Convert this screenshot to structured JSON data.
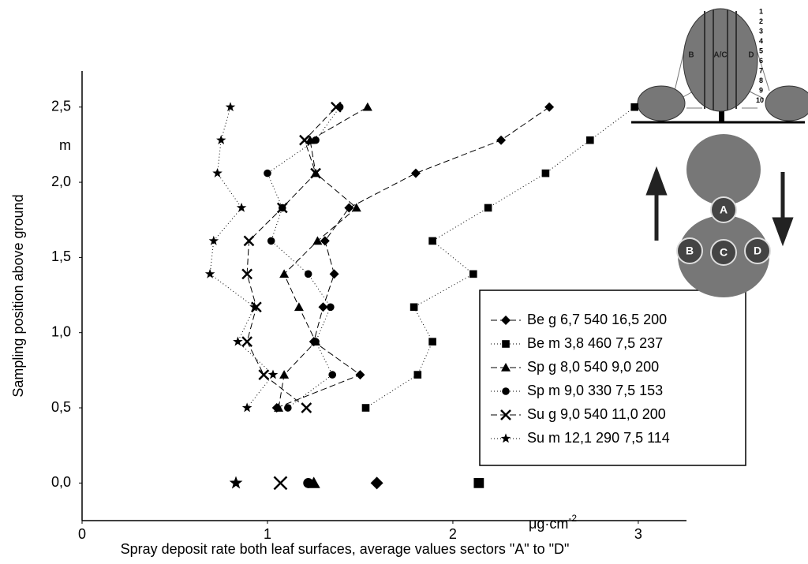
{
  "chart_data": {
    "type": "line",
    "x_label": "Spray deposit rate both leaf surfaces, average values sectors \"A\" to \"D\"",
    "y_label": "Sampling position above ground",
    "x_unit": "μg·cm",
    "x_unit_exponent": "-2",
    "y_unit": "m",
    "xlim": [
      0,
      3.26
    ],
    "ylim": [
      -0.25,
      2.74
    ],
    "xticks": [
      0,
      1,
      2,
      3
    ],
    "yticks": [
      {
        "value": 0,
        "label": "0,0"
      },
      {
        "value": 0.5,
        "label": "0,5"
      },
      {
        "value": 1,
        "label": "1,0"
      },
      {
        "value": 1.5,
        "label": "1,5"
      },
      {
        "value": 2,
        "label": "2,0"
      },
      {
        "value": 2.5,
        "label": "2,5"
      }
    ],
    "y": [
      0.5,
      0.72,
      0.94,
      1.17,
      1.39,
      1.61,
      1.83,
      2.06,
      2.28,
      2.5
    ],
    "ground_y": 0,
    "series": [
      {
        "name": "Be g  6,7 540 16,5 200",
        "marker": "diamond",
        "dash": "8 4",
        "color": "#000000",
        "x": [
          1.05,
          1.5,
          1.25,
          1.3,
          1.36,
          1.31,
          1.44,
          1.8,
          2.26,
          2.52
        ],
        "ground_x": 1.59
      },
      {
        "name": "Be m 3,8 460 7,5 237",
        "marker": "square",
        "dash": "1 3",
        "color": "#000000",
        "x": [
          1.53,
          1.81,
          1.89,
          1.79,
          2.11,
          1.89,
          2.19,
          2.5,
          2.74,
          2.98
        ],
        "ground_x": 2.14
      },
      {
        "name": "Sp g  8,0 540 9,0 200",
        "marker": "triangle",
        "dash": "8 4",
        "color": "#000000",
        "x": [
          1.06,
          1.09,
          1.26,
          1.17,
          1.09,
          1.27,
          1.48,
          1.26,
          1.23,
          1.54
        ],
        "ground_x": 1.25
      },
      {
        "name": "Sp m  9,0 330 7,5 153",
        "marker": "circle",
        "dash": "1 3",
        "color": "#000000",
        "x": [
          1.11,
          1.35,
          1.26,
          1.34,
          1.22,
          1.02,
          1.08,
          1.0,
          1.26,
          1.39
        ],
        "ground_x": 1.22
      },
      {
        "name": "Su g  9,0 540 11,0 200",
        "marker": "x",
        "dash": "8 4",
        "color": "#000000",
        "x": [
          1.21,
          0.98,
          0.89,
          0.94,
          0.89,
          0.9,
          1.08,
          1.26,
          1.2,
          1.37
        ],
        "ground_x": 1.07
      },
      {
        "name": "Su m 12,1 290 7,5 114",
        "marker": "star",
        "dash": "1 3",
        "color": "#000000",
        "x": [
          0.89,
          1.03,
          0.84,
          0.93,
          0.69,
          0.71,
          0.86,
          0.73,
          0.75,
          0.8
        ],
        "ground_x": 0.83
      }
    ],
    "inset": {
      "sectors": [
        "B",
        "A/C",
        "D"
      ],
      "levels": [
        "1",
        "2",
        "3",
        "4",
        "5",
        "6",
        "7",
        "8",
        "9",
        "10"
      ],
      "positions": [
        "A",
        "B",
        "C",
        "D"
      ]
    }
  }
}
